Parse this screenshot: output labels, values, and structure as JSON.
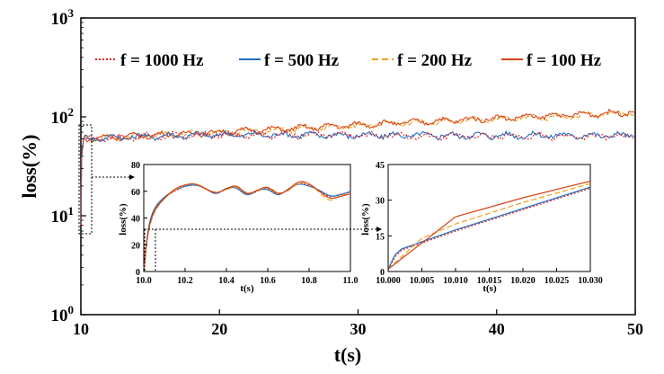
{
  "chart_data": [
    {
      "id": "main",
      "type": "line",
      "xlabel": "t(s)",
      "ylabel": "loss(%)",
      "xlim": [
        10,
        50
      ],
      "ylim_log10": [
        0,
        3
      ],
      "yscale": "log",
      "x_ticks": [
        "10",
        "20",
        "30",
        "40",
        "50"
      ],
      "x_tick_values": [
        10,
        20,
        30,
        40,
        50
      ],
      "y_ticks": [
        {
          "base": "10",
          "exp": "0",
          "value": 1
        },
        {
          "base": "10",
          "exp": "1",
          "value": 10
        },
        {
          "base": "10",
          "exp": "2",
          "value": 100
        },
        {
          "base": "10",
          "exp": "3",
          "value": 1000
        }
      ],
      "legend": [
        {
          "label": "f = 1000 Hz",
          "color": "#e02020",
          "style": "dotted"
        },
        {
          "label": "f = 500 Hz",
          "color": "#1f6fc4",
          "style": "solid"
        },
        {
          "label": "f = 200 Hz",
          "color": "#f0a020",
          "style": "dashed"
        },
        {
          "label": "f = 100 Hz",
          "color": "#d84315",
          "style": "solid"
        }
      ],
      "series": [
        {
          "name": "f = 1000 Hz",
          "x": [
            10,
            15,
            20,
            25,
            30,
            35,
            40,
            45,
            50
          ],
          "values": [
            60,
            64,
            66,
            66,
            65,
            64,
            64,
            64,
            63
          ]
        },
        {
          "name": "f = 500 Hz",
          "x": [
            10,
            15,
            20,
            25,
            30,
            35,
            40,
            45,
            50
          ],
          "values": [
            60,
            64,
            66,
            66,
            65,
            65,
            65,
            65,
            65
          ]
        },
        {
          "name": "f = 200 Hz",
          "x": [
            10,
            15,
            20,
            25,
            30,
            35,
            40,
            45,
            50
          ],
          "values": [
            60,
            65,
            70,
            75,
            82,
            88,
            95,
            102,
            110
          ]
        },
        {
          "name": "f = 100 Hz",
          "x": [
            10,
            15,
            20,
            25,
            30,
            35,
            40,
            45,
            50
          ],
          "values": [
            60,
            65,
            70,
            76,
            83,
            90,
            97,
            104,
            112
          ]
        }
      ]
    },
    {
      "id": "inset1",
      "type": "line",
      "xlabel": "t(s)",
      "ylabel": "loss(%)",
      "xlim": [
        10.0,
        11.0
      ],
      "ylim": [
        0,
        80
      ],
      "x_ticks": [
        "10.0",
        "10.2",
        "10.4",
        "10.6",
        "10.8",
        "11.0"
      ],
      "x_tick_values": [
        10.0,
        10.2,
        10.4,
        10.6,
        10.8,
        11.0
      ],
      "y_ticks": [
        "0",
        "20",
        "40",
        "60",
        "80"
      ],
      "y_tick_values": [
        0,
        20,
        40,
        60,
        80
      ],
      "series": [
        {
          "name": "f = 1000 Hz",
          "x": [
            10.0,
            10.02,
            10.05,
            10.1,
            10.15,
            10.2,
            10.25,
            10.3,
            10.35,
            10.4,
            10.45,
            10.5,
            10.55,
            10.6,
            10.65,
            10.7,
            10.75,
            10.8,
            10.85,
            10.9,
            10.95,
            11.0
          ],
          "values": [
            0,
            32,
            47,
            56,
            60,
            64,
            65,
            62,
            58,
            62,
            64,
            57,
            60,
            63,
            57,
            61,
            66,
            65,
            60,
            55,
            58,
            59
          ]
        },
        {
          "name": "f = 500 Hz",
          "x": [
            10.0,
            10.02,
            10.05,
            10.1,
            10.15,
            10.2,
            10.25,
            10.3,
            10.35,
            10.4,
            10.45,
            10.5,
            10.55,
            10.6,
            10.65,
            10.7,
            10.75,
            10.8,
            10.85,
            10.9,
            10.95,
            11.0
          ],
          "values": [
            0,
            33,
            48,
            56,
            61,
            64,
            65,
            62,
            57,
            63,
            63,
            56,
            61,
            62,
            56,
            62,
            66,
            64,
            61,
            56,
            57,
            60
          ]
        },
        {
          "name": "f = 200 Hz",
          "x": [
            10.0,
            10.02,
            10.05,
            10.1,
            10.15,
            10.2,
            10.25,
            10.3,
            10.35,
            10.4,
            10.45,
            10.5,
            10.55,
            10.6,
            10.65,
            10.7,
            10.75,
            10.8,
            10.85,
            10.9,
            10.95,
            11.0
          ],
          "values": [
            0,
            30,
            45,
            55,
            61,
            65,
            66,
            61,
            59,
            61,
            64,
            58,
            60,
            64,
            58,
            60,
            67,
            66,
            59,
            52,
            57,
            58
          ]
        },
        {
          "name": "f = 100 Hz",
          "x": [
            10.0,
            10.02,
            10.05,
            10.1,
            10.15,
            10.2,
            10.25,
            10.3,
            10.35,
            10.4,
            10.45,
            10.5,
            10.55,
            10.6,
            10.65,
            10.7,
            10.75,
            10.8,
            10.85,
            10.9,
            10.95,
            11.0
          ],
          "values": [
            0,
            31,
            46,
            55,
            62,
            65,
            66,
            62,
            58,
            62,
            65,
            57,
            61,
            64,
            57,
            61,
            68,
            66,
            60,
            54,
            56,
            58
          ]
        }
      ]
    },
    {
      "id": "inset2",
      "type": "line",
      "xlabel": "t(s)",
      "ylabel": "loss(%)",
      "xlim": [
        10.0,
        10.03
      ],
      "ylim": [
        0,
        45
      ],
      "x_ticks": [
        "10.000",
        "10.005",
        "10.010",
        "10.015",
        "10.020",
        "10.025",
        "10.030"
      ],
      "x_tick_values": [
        10.0,
        10.005,
        10.01,
        10.015,
        10.02,
        10.025,
        10.03
      ],
      "y_ticks": [
        "0",
        "15",
        "30",
        "45"
      ],
      "y_tick_values": [
        0,
        15,
        30,
        45
      ],
      "series": [
        {
          "name": "f = 1000 Hz",
          "x": [
            10.0,
            10.001,
            10.002,
            10.005,
            10.01,
            10.02,
            10.03
          ],
          "values": [
            1,
            6,
            9,
            12,
            17,
            26,
            35
          ]
        },
        {
          "name": "f = 500 Hz",
          "x": [
            10.0,
            10.001,
            10.002,
            10.005,
            10.01,
            10.02,
            10.03
          ],
          "values": [
            1,
            7,
            9.5,
            12.5,
            17.5,
            26.5,
            35.5
          ]
        },
        {
          "name": "f = 200 Hz",
          "x": [
            10.0,
            10.005,
            10.01,
            10.02,
            10.03
          ],
          "values": [
            1,
            14,
            20,
            29,
            37
          ]
        },
        {
          "name": "f = 100 Hz",
          "x": [
            10.0,
            10.005,
            10.01,
            10.02,
            10.03
          ],
          "values": [
            1,
            12,
            23,
            31,
            38
          ]
        }
      ]
    }
  ]
}
